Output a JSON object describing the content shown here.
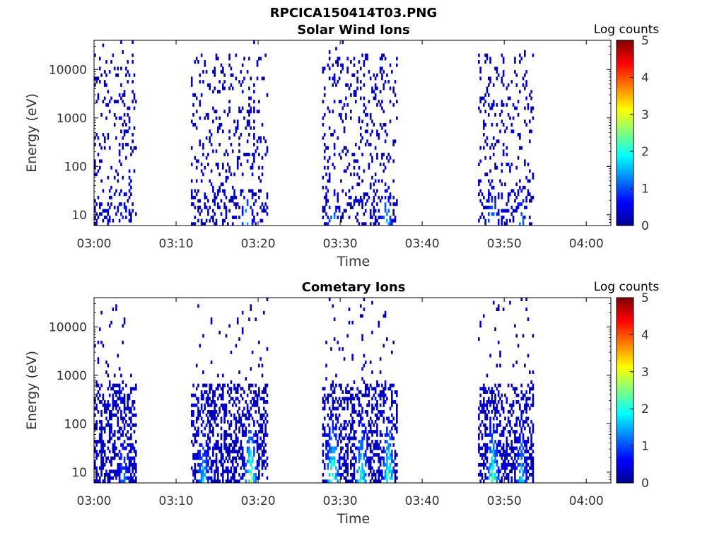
{
  "figure": {
    "title": "RPCICA150414T03.PNG"
  },
  "chart_data": [
    {
      "type": "heatmap",
      "title": "Solar Wind Ions",
      "xlabel": "Time",
      "ylabel": "Energy (eV)",
      "x_ticks": [
        "03:00",
        "03:10",
        "03:20",
        "03:30",
        "03:40",
        "03:50",
        "04:00"
      ],
      "x_range": [
        "03:00",
        "04:03"
      ],
      "y_scale": "log",
      "y_ticks": [
        10,
        100,
        1000,
        10000
      ],
      "y_range": [
        6,
        40000
      ],
      "colorbar": {
        "label": "Log counts",
        "range": [
          0,
          5
        ],
        "ticks": [
          0,
          1,
          2,
          3,
          4,
          5
        ],
        "colormap": "jet"
      },
      "activity_intervals_min": [
        [
          0.0,
          5.2
        ],
        [
          11.8,
          21.0
        ],
        [
          27.8,
          37.0
        ],
        [
          46.8,
          53.5
        ]
      ],
      "low_energy_hotspots": [
        {
          "time_min": 3.5,
          "log_counts": 1.3
        },
        {
          "time_min": 18.5,
          "log_counts": 2.0
        },
        {
          "time_min": 29.0,
          "log_counts": 1.8
        },
        {
          "time_min": 35.5,
          "log_counts": 2.0
        },
        {
          "time_min": 48.5,
          "log_counts": 2.0
        },
        {
          "time_min": 52.0,
          "log_counts": 1.6
        }
      ]
    },
    {
      "type": "heatmap",
      "title": "Cometary Ions",
      "xlabel": "Time",
      "ylabel": "Energy (eV)",
      "x_ticks": [
        "03:00",
        "03:10",
        "03:20",
        "03:30",
        "03:40",
        "03:50",
        "04:00"
      ],
      "x_range": [
        "03:00",
        "04:03"
      ],
      "y_scale": "log",
      "y_ticks": [
        10,
        100,
        1000,
        10000
      ],
      "y_range": [
        6,
        40000
      ],
      "colorbar": {
        "label": "Log counts",
        "range": [
          0,
          5
        ],
        "ticks": [
          0,
          1,
          2,
          3,
          4,
          5
        ],
        "colormap": "jet"
      },
      "activity_intervals_min": [
        [
          0.0,
          5.2
        ],
        [
          11.8,
          21.0
        ],
        [
          27.8,
          37.0
        ],
        [
          46.8,
          53.5
        ]
      ],
      "low_energy_hotspots": [
        {
          "time_min": 3.5,
          "log_counts": 1.5
        },
        {
          "time_min": 13.2,
          "log_counts": 2.0
        },
        {
          "time_min": 19.0,
          "log_counts": 3.0
        },
        {
          "time_min": 29.0,
          "log_counts": 3.0
        },
        {
          "time_min": 32.5,
          "log_counts": 2.7
        },
        {
          "time_min": 35.8,
          "log_counts": 2.8
        },
        {
          "time_min": 48.5,
          "log_counts": 2.8
        },
        {
          "time_min": 52.0,
          "log_counts": 2.0
        }
      ]
    }
  ]
}
